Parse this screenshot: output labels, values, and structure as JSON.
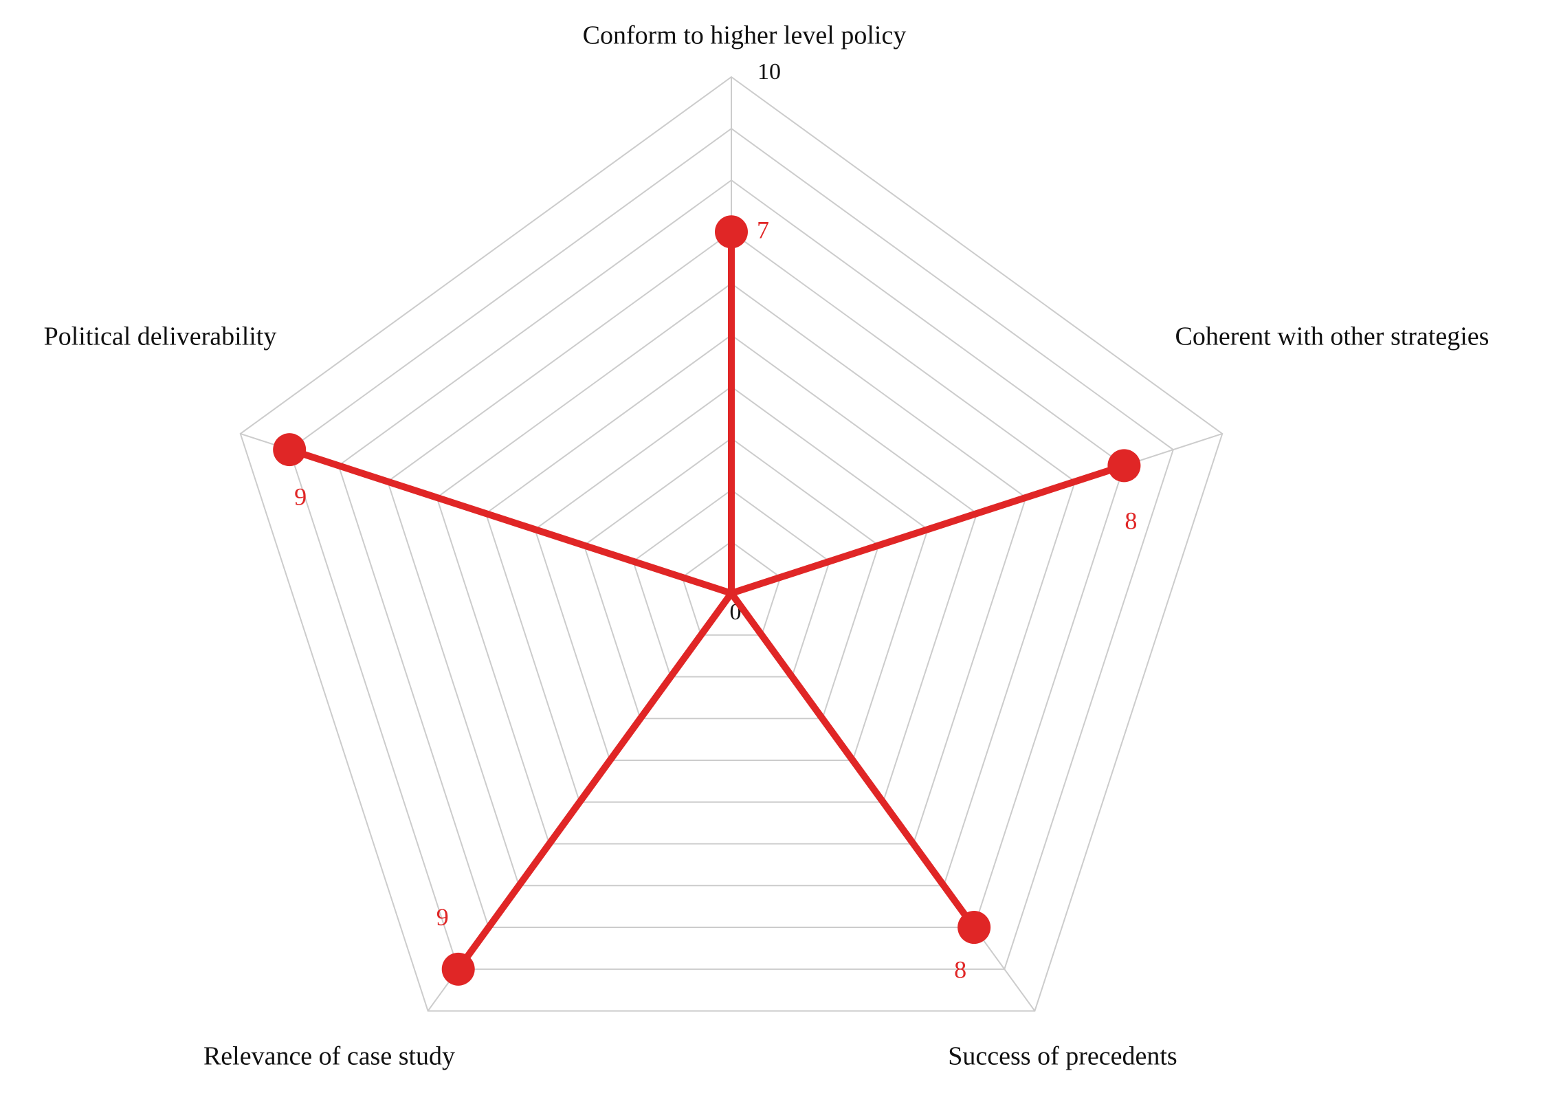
{
  "chart_data": {
    "type": "radar",
    "categories": [
      "Conform to higher level policy",
      "Coherent with other strategies",
      "Success of precedents",
      "Relevance of case study",
      "Political deliverability"
    ],
    "values": [
      7,
      8,
      8,
      9,
      9
    ],
    "color": "#e02626",
    "rlim": [
      0,
      10
    ],
    "rticks": [
      0,
      10
    ],
    "grid_levels": 10,
    "grid_color": "#cccccc"
  }
}
